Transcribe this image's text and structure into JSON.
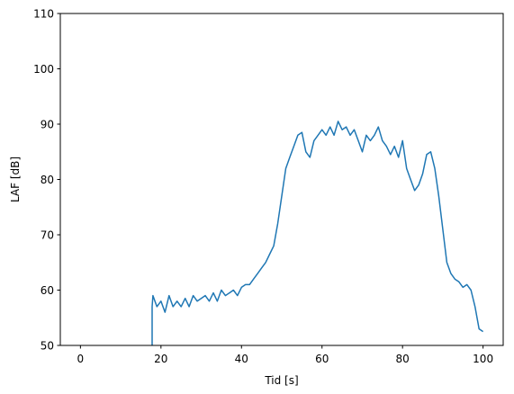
{
  "chart_data": {
    "type": "line",
    "title": "",
    "xlabel": "Tid [s]",
    "ylabel": "LAF [dB]",
    "xlim": [
      -5,
      105
    ],
    "ylim": [
      50,
      110
    ],
    "xticks": [
      0,
      20,
      40,
      60,
      80,
      100
    ],
    "yticks": [
      50,
      60,
      70,
      80,
      90,
      100,
      110
    ],
    "grid": false,
    "legend": "none",
    "series_color": "#1f77b4",
    "series": [
      {
        "x": [
          17.8,
          17.8,
          18.0,
          19,
          20,
          21,
          22,
          23,
          24,
          25,
          26,
          27,
          28,
          29,
          30,
          31,
          32,
          33,
          34,
          35,
          36,
          37,
          38,
          39,
          40,
          41,
          42,
          43,
          44,
          45,
          46,
          47,
          48,
          49,
          50,
          51,
          52,
          53,
          54,
          55,
          56,
          57,
          58,
          59,
          60,
          61,
          62,
          63,
          64,
          65,
          66,
          67,
          68,
          69,
          70,
          71,
          72,
          73,
          74,
          75,
          76,
          77,
          78,
          79,
          80,
          81,
          82,
          83,
          84,
          85,
          86,
          87,
          88,
          89,
          90,
          91,
          92,
          93,
          94,
          95,
          96,
          97,
          98,
          99,
          100
        ],
        "y": [
          50,
          57,
          59,
          57,
          58,
          56,
          59,
          57,
          58,
          57,
          58.5,
          57,
          59,
          58,
          58.5,
          59,
          58,
          59.5,
          58,
          60,
          59,
          59.5,
          60,
          59,
          60.5,
          61,
          61,
          62,
          63,
          64,
          65,
          66.5,
          68,
          72,
          77,
          82,
          84,
          86,
          88,
          88.5,
          85,
          84,
          87,
          88,
          89,
          88,
          89.5,
          88,
          90.5,
          89,
          89.5,
          88,
          89,
          87,
          85,
          88,
          87,
          88,
          89.5,
          87,
          86,
          84.5,
          86,
          84,
          87,
          82,
          80,
          78,
          79,
          81,
          84.5,
          85,
          82,
          77,
          71,
          65,
          63,
          62,
          61.5,
          60.5,
          61,
          60,
          57,
          53,
          52.5
        ]
      }
    ]
  }
}
